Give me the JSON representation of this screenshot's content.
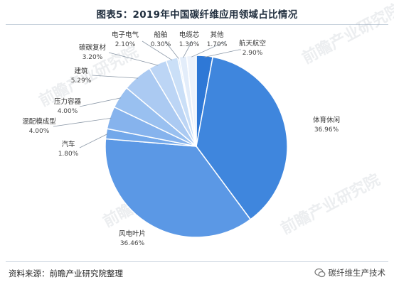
{
  "title": "图表5：2019年中国碳纤维应用领域占比情况",
  "source": "资料来源：前瞻产业研究院整理",
  "wechat_account": "碳纤维生产技术",
  "watermark": "前瞻产业研究院",
  "chart_data": {
    "type": "pie",
    "title": "图表5：2019年中国碳纤维应用领域占比情况",
    "unit": "%",
    "start_angle": "12 o'clock",
    "direction": "clockwise",
    "slices": [
      {
        "label": "航天航空",
        "value": 2.9,
        "display": "2.90%",
        "color": "#2e78d6"
      },
      {
        "label": "体育休闲",
        "value": 36.96,
        "display": "36.96%",
        "color": "#3f86dd"
      },
      {
        "label": "风电叶片",
        "value": 36.46,
        "display": "36.46%",
        "color": "#5b98e5"
      },
      {
        "label": "汽车",
        "value": 1.8,
        "display": "1.80%",
        "color": "#73a8ea"
      },
      {
        "label": "混配模成型",
        "value": 4.0,
        "display": "4.00%",
        "color": "#86b3ed"
      },
      {
        "label": "压力容器",
        "value": 4.0,
        "display": "4.00%",
        "color": "#99c0f0"
      },
      {
        "label": "建筑",
        "value": 5.29,
        "display": "5.29%",
        "color": "#abcaf2"
      },
      {
        "label": "碳碳复材",
        "value": 3.2,
        "display": "3.20%",
        "color": "#bcd5f5"
      },
      {
        "label": "电子电气",
        "value": 2.1,
        "display": "2.10%",
        "color": "#cadff7"
      },
      {
        "label": "船舶",
        "value": 0.3,
        "display": "0.30%",
        "color": "#d8e7f9"
      },
      {
        "label": "电缆芯",
        "value": 1.3,
        "display": "1.30%",
        "color": "#e3edfa"
      },
      {
        "label": "其他",
        "value": 1.7,
        "display": "1.70%",
        "color": "#edf3fc"
      }
    ]
  }
}
